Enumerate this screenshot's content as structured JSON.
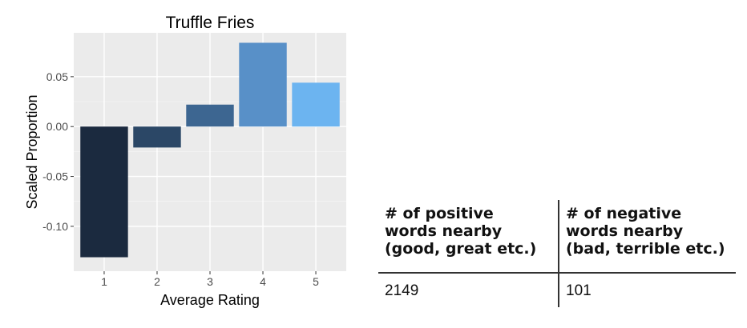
{
  "chart_data": {
    "type": "bar",
    "title": "Truffle Fries",
    "xlabel": "Average Rating",
    "ylabel": "Scaled Proportion",
    "categories": [
      "1",
      "2",
      "3",
      "4",
      "5"
    ],
    "values": [
      -0.131,
      -0.021,
      0.022,
      0.084,
      0.044
    ],
    "colors": [
      "#1b2a3f",
      "#2b4766",
      "#3d6691",
      "#5890c8",
      "#6cb4f0"
    ],
    "ylim": [
      -0.145,
      0.094
    ],
    "yticks": [
      -0.1,
      -0.05,
      0.0,
      0.05
    ],
    "ytick_labels": [
      "-0.10",
      "-0.05",
      "0.00",
      "0.05"
    ],
    "grid": true
  },
  "table": {
    "headers": [
      [
        "# of positive",
        "words nearby",
        "(good, great etc.)"
      ],
      [
        "# of negative",
        "words nearby",
        "(bad, terrible etc.)"
      ]
    ],
    "values": [
      "2149",
      "101"
    ]
  }
}
